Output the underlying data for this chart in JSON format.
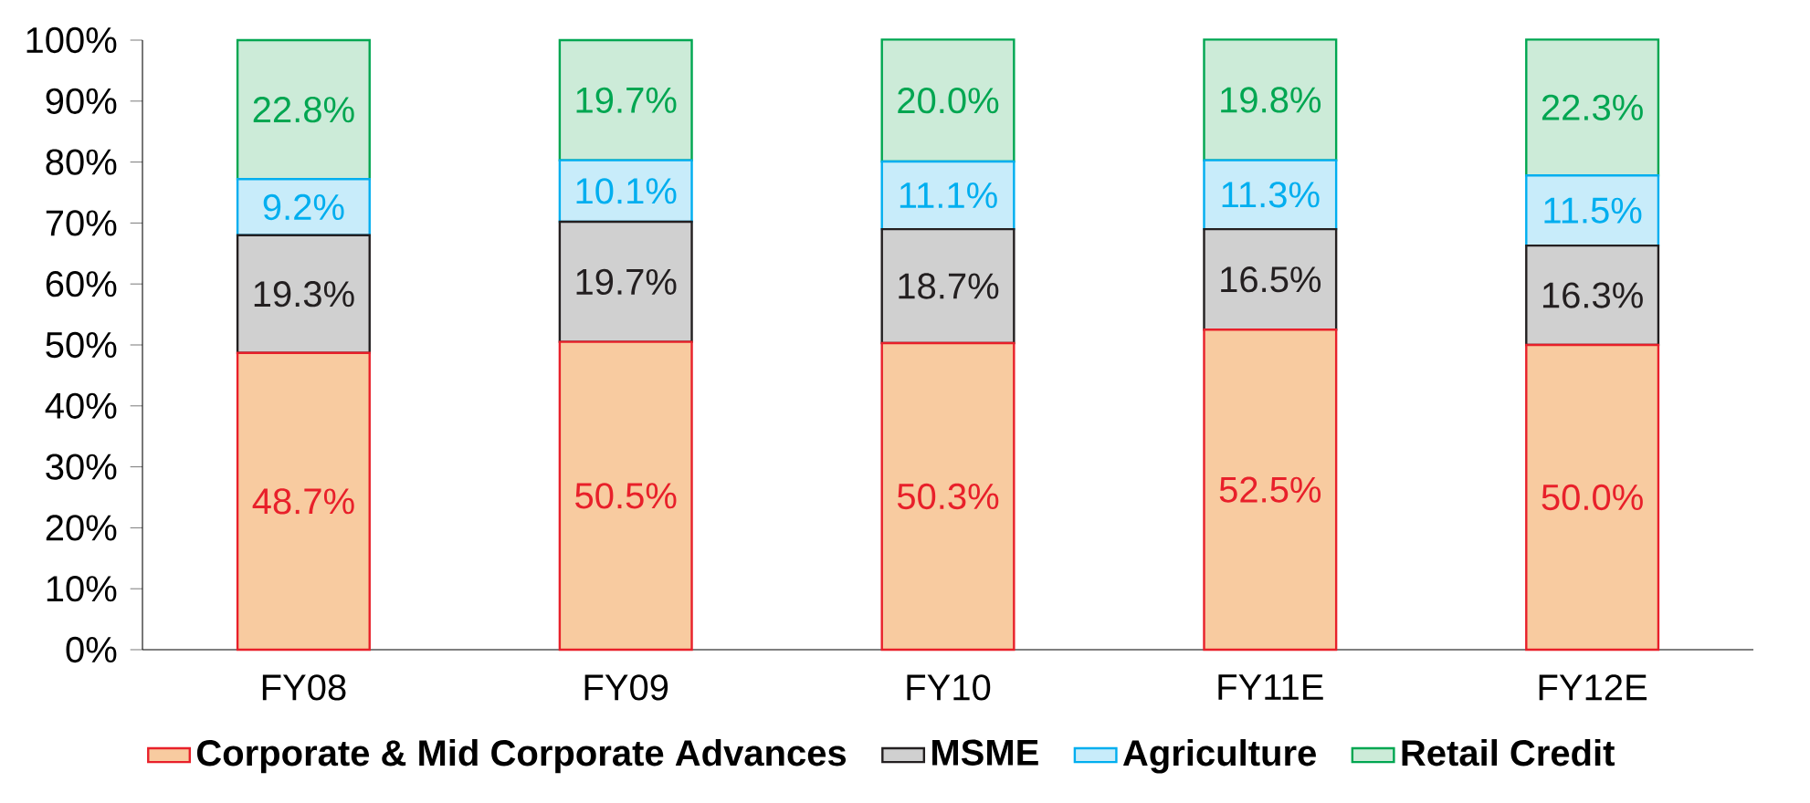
{
  "chart_data": {
    "type": "bar",
    "stacked": true,
    "categories": [
      "FY08",
      "FY09",
      "FY10",
      "FY11E",
      "FY12E"
    ],
    "series": [
      {
        "name": "Corporate & Mid Corporate Advances",
        "color": "#f8cba0",
        "values": [
          48.7,
          50.5,
          50.3,
          52.5,
          50.0
        ],
        "value_labels": [
          "48.7%",
          "50.5%",
          "50.3%",
          "52.5%",
          "50.0%"
        ]
      },
      {
        "name": "MSME",
        "color": "#d0d0d0",
        "values": [
          19.3,
          19.7,
          18.7,
          16.5,
          16.3
        ],
        "value_labels": [
          "19.3%",
          "19.7%",
          "18.7%",
          "16.5%",
          "16.3%"
        ]
      },
      {
        "name": "Agriculture",
        "color": "#c8ecfa",
        "values": [
          9.2,
          10.1,
          11.1,
          11.3,
          11.5
        ],
        "value_labels": [
          "9.2%",
          "10.1%",
          "11.1%",
          "11.3%",
          "11.5%"
        ]
      },
      {
        "name": "Retail Credit",
        "color": "#ccebd8",
        "values": [
          22.8,
          19.7,
          20.0,
          19.8,
          22.3
        ],
        "value_labels": [
          "22.8%",
          "19.7%",
          "20.0%",
          "19.8%",
          "22.3%"
        ]
      }
    ],
    "ylim": [
      0,
      100
    ],
    "yticks": [
      {
        "value": 0,
        "label": "0%"
      },
      {
        "value": 10,
        "label": "10%"
      },
      {
        "value": 20,
        "label": "20%"
      },
      {
        "value": 30,
        "label": "30%"
      },
      {
        "value": 40,
        "label": "40%"
      },
      {
        "value": 50,
        "label": "50%"
      },
      {
        "value": 60,
        "label": "60%"
      },
      {
        "value": 70,
        "label": "70%"
      },
      {
        "value": 80,
        "label": "80%"
      },
      {
        "value": 90,
        "label": "90%"
      },
      {
        "value": 100,
        "label": "100%"
      }
    ],
    "grid": false,
    "legend": "bottom"
  }
}
